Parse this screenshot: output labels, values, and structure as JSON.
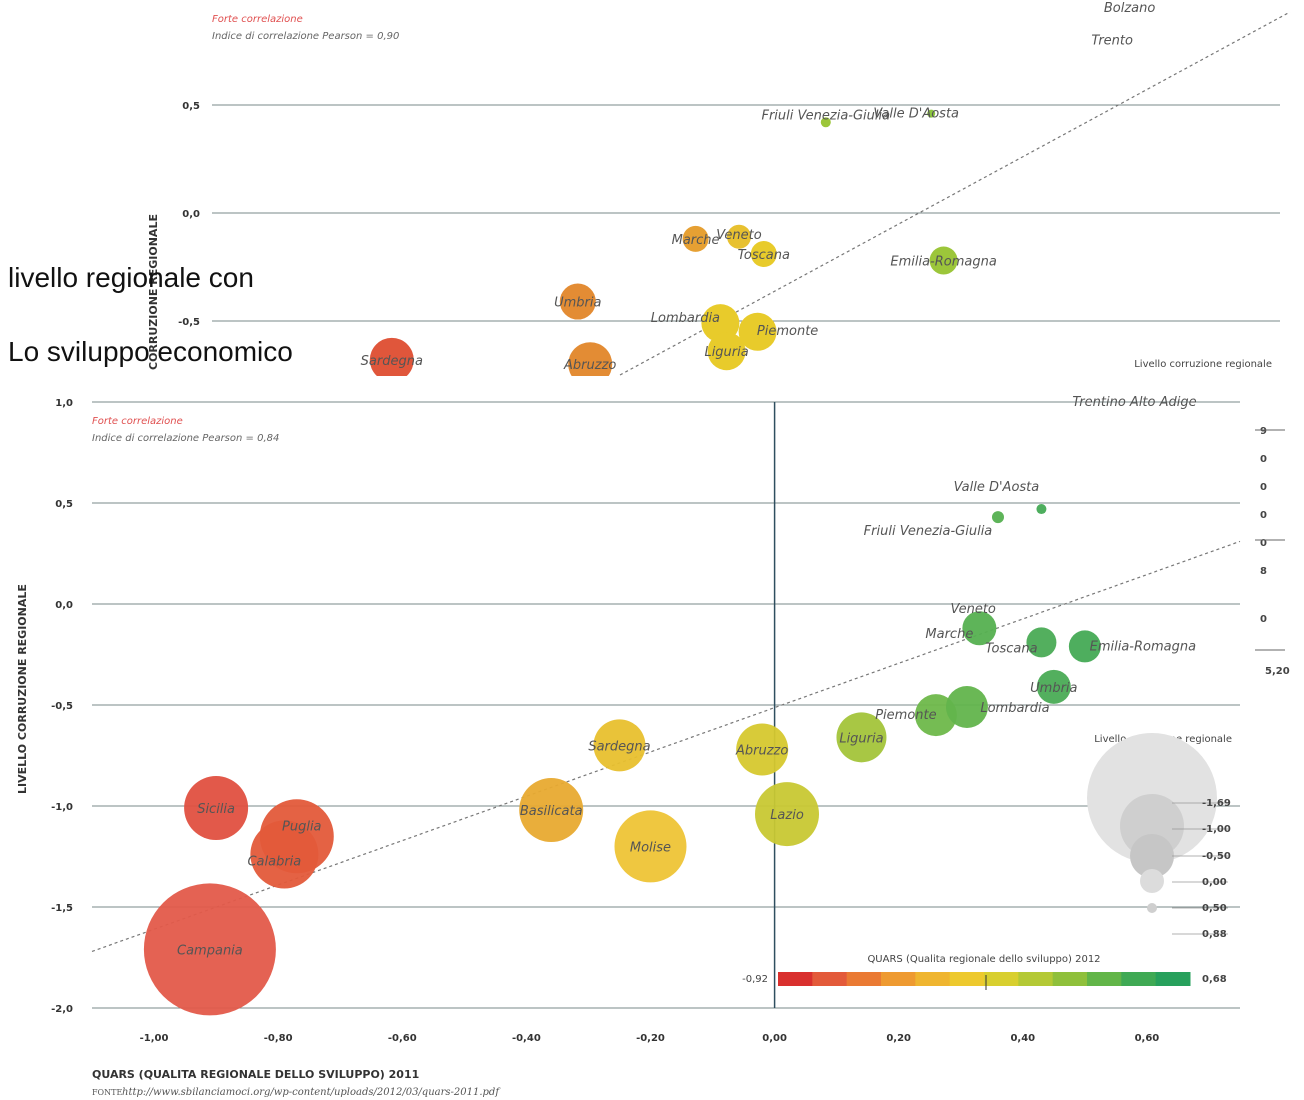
{
  "captions": {
    "line1": "livello regionale con",
    "line2": "Lo sviluppo economico"
  },
  "top_chart": {
    "note_red": "Forte correlazione",
    "note_pearson": "Indice di correlazione Pearson = 0,90",
    "ylabel": "CORRUZIONE REGIONALE",
    "yticks": [
      "0,5",
      "0,0",
      "-0,5"
    ],
    "legend_title": "Livello corruzione regionale",
    "regions": [
      {
        "name": "Bolzano",
        "x": 0.58,
        "y": 0.93,
        "r": 0,
        "color": "#55b050"
      },
      {
        "name": "Trento",
        "x": 0.56,
        "y": 0.78,
        "r": 0,
        "color": "#55b050"
      },
      {
        "name": "Friuli Venezia-Giulia",
        "x": 0.09,
        "y": 0.42,
        "r": 5,
        "color": "#9cc63a"
      },
      {
        "name": "Valle D'Aosta",
        "x": 0.26,
        "y": 0.46,
        "r": 4,
        "color": "#8cc63f"
      },
      {
        "name": "Marche",
        "x": -0.12,
        "y": -0.12,
        "r": 13,
        "color": "#e6a033"
      },
      {
        "name": "Veneto",
        "x": -0.05,
        "y": -0.11,
        "r": 12,
        "color": "#e8c130"
      },
      {
        "name": "Toscana",
        "x": -0.01,
        "y": -0.19,
        "r": 13,
        "color": "#e8cb2b"
      },
      {
        "name": "Emilia-Romagna",
        "x": 0.28,
        "y": -0.22,
        "r": 14,
        "color": "#9cc63a"
      },
      {
        "name": "Umbria",
        "x": -0.31,
        "y": -0.41,
        "r": 18,
        "color": "#e38c34"
      },
      {
        "name": "Lombardia",
        "x": -0.08,
        "y": -0.51,
        "r": 19,
        "color": "#e8cb2b"
      },
      {
        "name": "Piemonte",
        "x": -0.02,
        "y": -0.55,
        "r": 19,
        "color": "#e8cb2b"
      },
      {
        "name": "Liguria",
        "x": -0.07,
        "y": -0.64,
        "r": 19,
        "color": "#e8cb2b"
      },
      {
        "name": "Sardegna",
        "x": -0.61,
        "y": -0.68,
        "r": 22,
        "color": "#e0563b"
      },
      {
        "name": "Abruzzo",
        "x": -0.29,
        "y": -0.7,
        "r": 22,
        "color": "#e38c34"
      }
    ]
  },
  "chart_data": {
    "type": "scatter",
    "note_red": "Forte correlazione",
    "note_pearson": "Indice di correlazione Pearson = 0,84",
    "xlabel": "QUARS (QUALITA REGIONALE DELLO SVILUPPO) 2011",
    "ylabel": "LIVELLO CORRUZIONE REGIONALE",
    "source_label": "FONTE",
    "source_url": "http://www.sbilanciamoci.org/wp-content/uploads/2012/03/quars-2011.pdf",
    "xlim": [
      -1.1,
      0.75
    ],
    "ylim": [
      -2.0,
      1.0
    ],
    "xticks": [
      "-1,00",
      "-0,80",
      "-0,60",
      "-0,40",
      "-0,20",
      "0,00",
      "0,20",
      "0,40",
      "0,60"
    ],
    "xtick_values": [
      -1.0,
      -0.8,
      -0.6,
      -0.4,
      -0.2,
      0.0,
      0.2,
      0.4,
      0.6
    ],
    "yticks": [
      "1,0",
      "0,5",
      "0,0",
      "-0,5",
      "-1,0",
      "-1,5",
      "-2,0"
    ],
    "ytick_values": [
      1.0,
      0.5,
      0.0,
      -0.5,
      -1.0,
      -1.5,
      -2.0
    ],
    "trendline": {
      "x1": -1.1,
      "y1": -1.72,
      "x2": 0.75,
      "y2": 0.31
    },
    "points": [
      {
        "name": "Trentino Alto Adige",
        "x": 0.58,
        "y": 0.94,
        "r": 0,
        "color": "#44aa55"
      },
      {
        "name": "Valle D'Aosta",
        "x": 0.43,
        "y": 0.47,
        "r": 5,
        "color": "#44aa55"
      },
      {
        "name": "Friuli Venezia-Giulia",
        "x": 0.36,
        "y": 0.43,
        "r": 6,
        "color": "#55b050"
      },
      {
        "name": "Veneto",
        "x": 0.32,
        "y": -0.02,
        "r": 0,
        "color": "#55b050"
      },
      {
        "name": "Marche",
        "x": 0.33,
        "y": -0.12,
        "r": 17,
        "color": "#55b050"
      },
      {
        "name": "Toscana",
        "x": 0.43,
        "y": -0.19,
        "r": 15,
        "color": "#4aab55"
      },
      {
        "name": "Emilia-Romagna",
        "x": 0.5,
        "y": -0.21,
        "r": 16,
        "color": "#44aa55"
      },
      {
        "name": "Umbria",
        "x": 0.45,
        "y": -0.41,
        "r": 17,
        "color": "#4aab55"
      },
      {
        "name": "Piemonte",
        "x": 0.26,
        "y": -0.55,
        "r": 21,
        "color": "#6eb84a"
      },
      {
        "name": "Lombardia",
        "x": 0.31,
        "y": -0.51,
        "r": 21,
        "color": "#62b44c"
      },
      {
        "name": "Liguria",
        "x": 0.14,
        "y": -0.66,
        "r": 25,
        "color": "#a3c43a"
      },
      {
        "name": "Abruzzo",
        "x": -0.02,
        "y": -0.72,
        "r": 26,
        "color": "#d6c82e"
      },
      {
        "name": "Sardegna",
        "x": -0.25,
        "y": -0.7,
        "r": 26,
        "color": "#e8c02e"
      },
      {
        "name": "Basilicata",
        "x": -0.36,
        "y": -1.02,
        "r": 32,
        "color": "#e8aa30"
      },
      {
        "name": "Lazio",
        "x": 0.02,
        "y": -1.04,
        "r": 32,
        "color": "#c8c833"
      },
      {
        "name": "Molise",
        "x": -0.2,
        "y": -1.2,
        "r": 36,
        "color": "#eec436"
      },
      {
        "name": "Sicilia",
        "x": -0.9,
        "y": -1.01,
        "r": 32,
        "color": "#e05040"
      },
      {
        "name": "Puglia",
        "x": -0.77,
        "y": -1.15,
        "r": 37,
        "color": "#e35a3a"
      },
      {
        "name": "Calabria",
        "x": -0.79,
        "y": -1.24,
        "r": 34,
        "color": "#e35a3a"
      },
      {
        "name": "Campania",
        "x": -0.91,
        "y": -1.71,
        "r": 66,
        "color": "#e35a4a"
      }
    ],
    "legend": {
      "title": "Livello corruzione regionale",
      "values": [
        "-1,69",
        "-1,00",
        "-0,50",
        "0,00",
        "0,50",
        "0,88"
      ]
    },
    "colorbar": {
      "title": "QUARS (Qualita regionale dello sviluppo) 2012",
      "min_label": "-0,92",
      "max_label": "0,68",
      "colors": [
        "#d9302e",
        "#e35a3a",
        "#ea7a33",
        "#ee9a31",
        "#efb530",
        "#edc92e",
        "#d8cf2f",
        "#b4c935",
        "#8fc03b",
        "#62b548",
        "#3fa954",
        "#27a05c"
      ]
    }
  },
  "right_partial": {
    "ticks": [
      "9",
      "0",
      "0",
      "0",
      "0",
      "8",
      "0"
    ],
    "value": "5,20"
  }
}
